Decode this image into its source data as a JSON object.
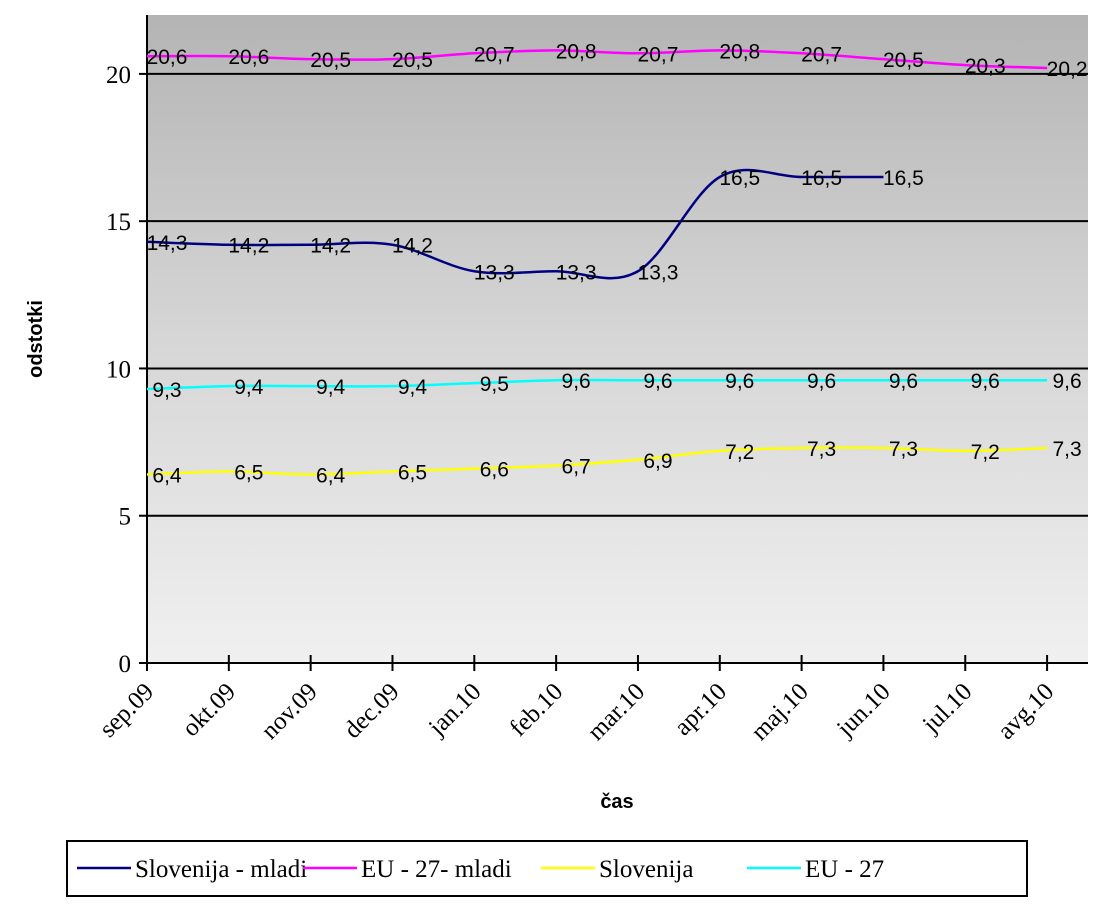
{
  "chart_data": {
    "type": "line",
    "title": "",
    "xlabel": "čas",
    "ylabel": "odstotki",
    "categories": [
      "sep.09",
      "okt.09",
      "nov.09",
      "dec.09",
      "jan.10",
      "feb.10",
      "mar.10",
      "apr.10",
      "maj.10",
      "jun.10",
      "jul.10",
      "avg.10"
    ],
    "ylim": [
      0,
      22
    ],
    "yticks": [
      "0",
      "5",
      "10",
      "15",
      "20"
    ],
    "grid": "horizontal major lines at 5, 10, 15, 20",
    "legend_position": "bottom",
    "series": [
      {
        "name": "Slovenija - mladi",
        "color": "#000080",
        "values": [
          14.3,
          14.2,
          14.2,
          14.2,
          13.3,
          13.3,
          13.3,
          16.5,
          16.5,
          16.5,
          null,
          null
        ],
        "labels": [
          "14,3",
          "14,2",
          "14,2",
          "14,2",
          "13,3",
          "13,3",
          "13,3",
          "16,5",
          "16,5",
          "16,5",
          "",
          ""
        ]
      },
      {
        "name": "EU - 27- mladi",
        "color": "#ff00ff",
        "values": [
          20.6,
          20.6,
          20.5,
          20.5,
          20.7,
          20.8,
          20.7,
          20.8,
          20.7,
          20.5,
          20.3,
          20.2
        ],
        "labels": [
          "20,6",
          "20,6",
          "20,5",
          "20,5",
          "20,7",
          "20,8",
          "20,7",
          "20,8",
          "20,7",
          "20,5",
          "20,3",
          "20,2"
        ]
      },
      {
        "name": "Slovenija",
        "color": "#ffff00",
        "values": [
          6.4,
          6.5,
          6.4,
          6.5,
          6.6,
          6.7,
          6.9,
          7.2,
          7.3,
          7.3,
          7.2,
          7.3
        ],
        "labels": [
          "6,4",
          "6,5",
          "6,4",
          "6,5",
          "6,6",
          "6,7",
          "6,9",
          "7,2",
          "7,3",
          "7,3",
          "7,2",
          "7,3"
        ]
      },
      {
        "name": "EU - 27",
        "color": "#00ffff",
        "values": [
          9.3,
          9.4,
          9.4,
          9.4,
          9.5,
          9.6,
          9.6,
          9.6,
          9.6,
          9.6,
          9.6,
          9.6
        ],
        "labels": [
          "9,3",
          "9,4",
          "9,4",
          "9,4",
          "9,5",
          "9,6",
          "9,6",
          "9,6",
          "9,6",
          "9,6",
          "9,6",
          "9,6"
        ]
      }
    ]
  }
}
